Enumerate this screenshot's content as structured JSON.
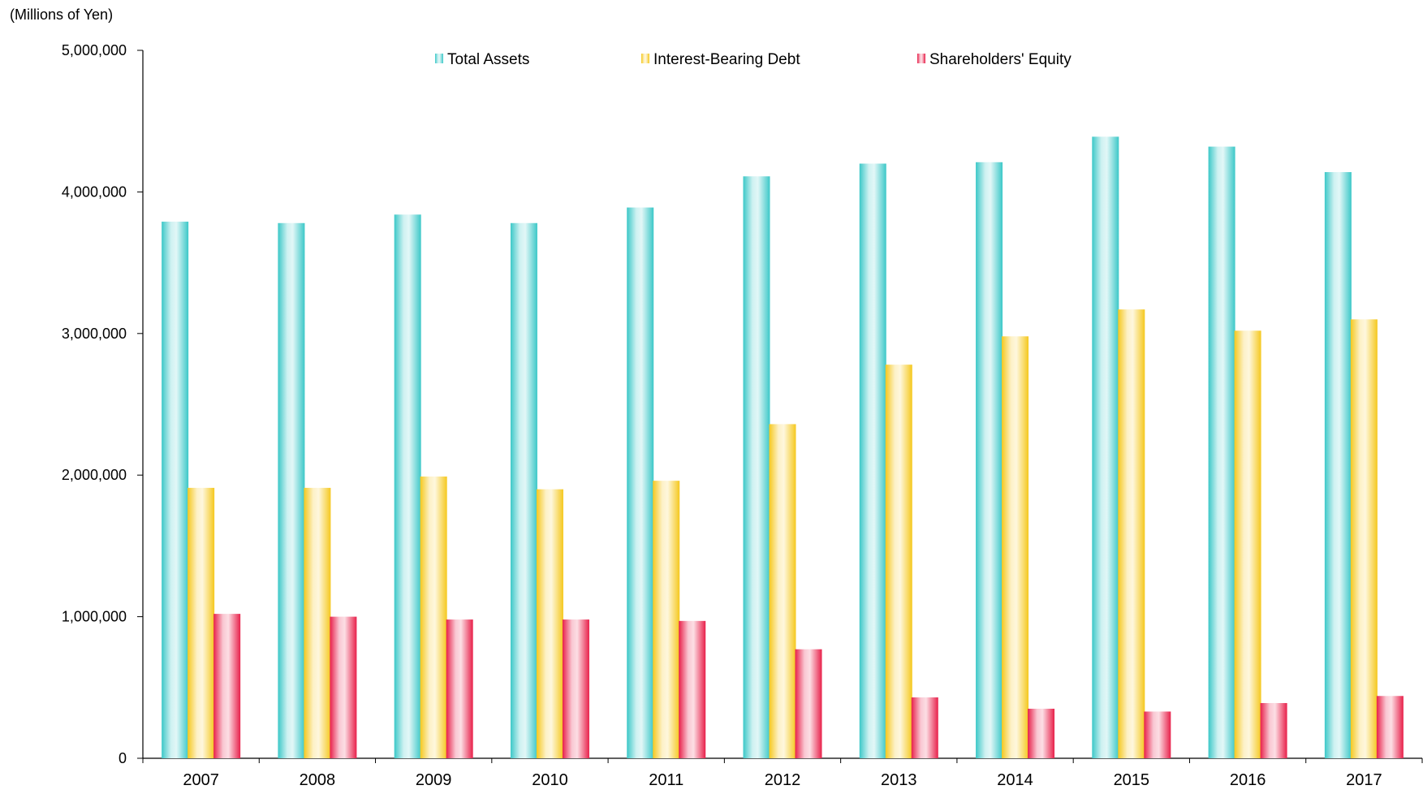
{
  "chart_data": {
    "type": "bar",
    "unit_label": "(Millions of Yen)",
    "categories": [
      "2007",
      "2008",
      "2009",
      "2010",
      "2011",
      "2012",
      "2013",
      "2014",
      "2015",
      "2016",
      "2017"
    ],
    "series": [
      {
        "name": "Total Assets",
        "color": "#3cc8c8",
        "values": [
          3790000,
          3780000,
          3840000,
          3780000,
          3890000,
          4110000,
          4200000,
          4210000,
          4390000,
          4320000,
          4140000
        ]
      },
      {
        "name": "Interest-Bearing Debt",
        "color": "#f5c81e",
        "values": [
          1910000,
          1910000,
          1990000,
          1900000,
          1960000,
          2360000,
          2780000,
          2980000,
          3170000,
          3020000,
          3100000
        ]
      },
      {
        "name": "Shareholders' Equity",
        "color": "#e8204a",
        "values": [
          1020000,
          1000000,
          980000,
          980000,
          970000,
          770000,
          430000,
          350000,
          330000,
          390000,
          440000
        ]
      }
    ],
    "ylim": [
      0,
      5000000
    ],
    "yticks": [
      {
        "value": 0,
        "label": "0"
      },
      {
        "value": 1000000,
        "label": "1,000,000"
      },
      {
        "value": 2000000,
        "label": "2,000,000"
      },
      {
        "value": 3000000,
        "label": "3,000,000"
      },
      {
        "value": 4000000,
        "label": "4,000,000"
      },
      {
        "value": 5000000,
        "label": "5,000,000"
      }
    ],
    "xlabel": "",
    "ylabel": "",
    "grid": false,
    "legend_position": "top-center"
  }
}
